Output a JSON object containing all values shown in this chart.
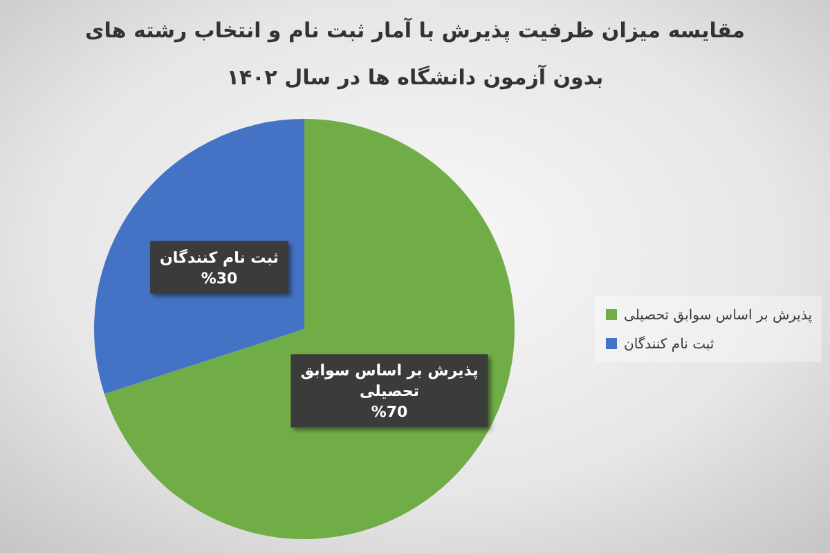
{
  "chart_data": {
    "type": "pie",
    "title": "مقایسه میزان ظرفیت پذیرش با آمار ثبت نام و انتخاب رشته های بدون آزمون دانشگاه ها در سال ۱۴۰۲",
    "categories": [
      "پذیرش بر اساس سوابق تحصیلی",
      "ثبت نام کنندگان"
    ],
    "values": [
      70,
      30
    ],
    "colors": [
      "#70ad47",
      "#4472c4"
    ],
    "value_labels": [
      "%70",
      "%30"
    ],
    "legend": "right"
  }
}
